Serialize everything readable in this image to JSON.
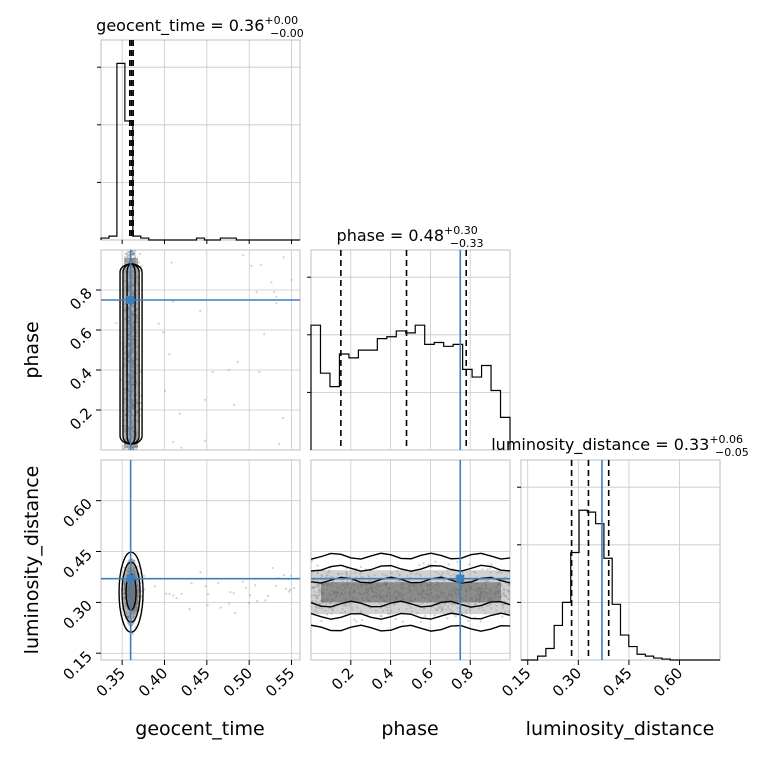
{
  "truth_color": "#3b7fbf",
  "chart_data": {
    "type": "corner",
    "parameters": [
      "geocent_time",
      "phase",
      "luminosity_distance"
    ],
    "titles": [
      {
        "param": "geocent_time",
        "median": "0.36",
        "plus": "+0.00",
        "minus": "−0.00"
      },
      {
        "param": "phase",
        "median": "0.48",
        "plus": "+0.30",
        "minus": "−0.33"
      },
      {
        "param": "luminosity_distance",
        "median": "0.33",
        "plus": "+0.06",
        "minus": "−0.05"
      }
    ],
    "axis_labels": {
      "x": [
        "geocent_time",
        "phase",
        "luminosity_distance"
      ],
      "y": [
        "phase",
        "luminosity_distance"
      ]
    },
    "ranges": {
      "geocent_time": [
        0.325,
        0.56
      ],
      "phase": [
        0.0,
        1.0
      ],
      "luminosity_distance": [
        0.13,
        0.72
      ]
    },
    "ticks": {
      "geocent_time": [
        "0.35",
        "0.40",
        "0.45",
        "0.50",
        "0.55"
      ],
      "phase": [
        "0.2",
        "0.4",
        "0.6",
        "0.8"
      ],
      "luminosity_distance": [
        "0.15",
        "0.30",
        "0.45",
        "0.60"
      ]
    },
    "truths": {
      "geocent_time": 0.36,
      "phase": 0.75,
      "luminosity_distance": 0.37
    },
    "quantiles": {
      "geocent_time": [
        0.359,
        0.361,
        0.363
      ],
      "phase": [
        0.15,
        0.48,
        0.78
      ],
      "luminosity_distance": [
        0.28,
        0.33,
        0.39
      ]
    },
    "histograms": {
      "geocent_time": {
        "range": [
          0.325,
          0.56
        ],
        "counts": [
          0.01,
          0.02,
          0.92,
          0.62,
          0.02,
          0.01,
          0.0,
          0.0,
          0.0,
          0.0,
          0.0,
          0.0,
          0.01,
          0.0,
          0.0,
          0.01,
          0.01,
          0.0,
          0.0,
          0.0,
          0.0,
          0.0,
          0.0,
          0.0,
          0.0
        ]
      },
      "phase": {
        "range": [
          0.0,
          1.0
        ],
        "counts": [
          0.65,
          0.4,
          0.33,
          0.5,
          0.48,
          0.52,
          0.52,
          0.58,
          0.59,
          0.62,
          0.61,
          0.65,
          0.55,
          0.56,
          0.54,
          0.55,
          0.42,
          0.38,
          0.44,
          0.31,
          0.17
        ]
      },
      "luminosity_distance": {
        "range": [
          0.13,
          0.72
        ],
        "counts": [
          0.0,
          0.0,
          0.02,
          0.06,
          0.18,
          0.3,
          0.56,
          0.78,
          0.77,
          0.71,
          0.53,
          0.29,
          0.13,
          0.07,
          0.03,
          0.02,
          0.01,
          0.005,
          0.0,
          0.0,
          0.0,
          0.0,
          0.0,
          0.0
        ]
      }
    },
    "grid": true,
    "truth_style": "blue lines with square markers"
  }
}
